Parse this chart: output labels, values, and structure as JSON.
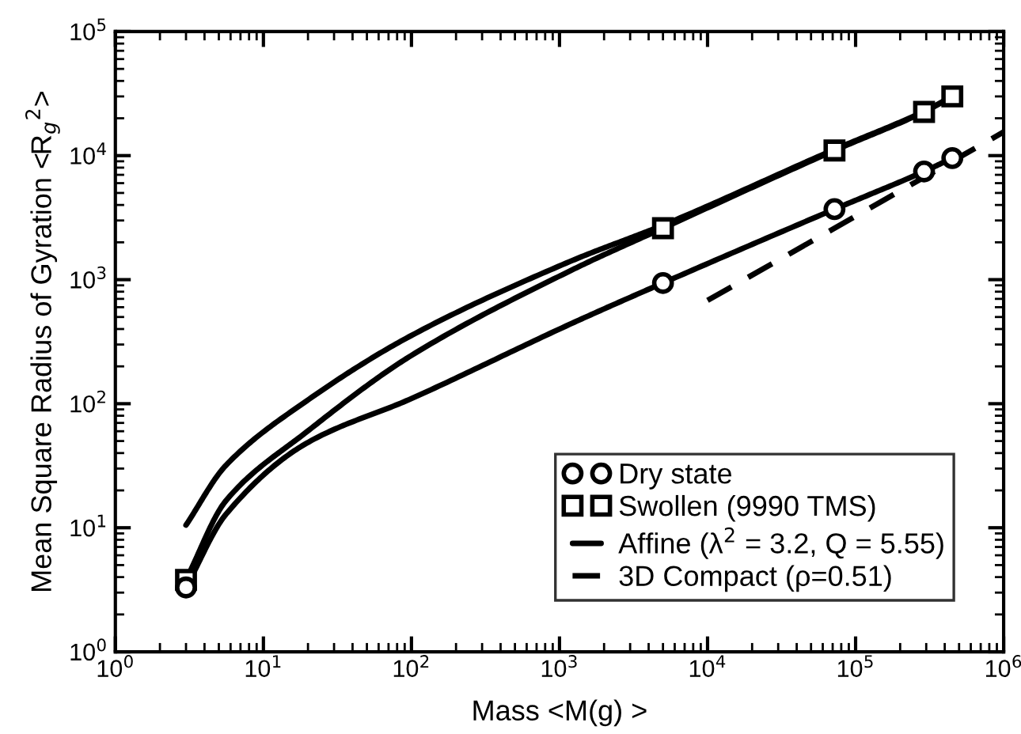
{
  "chart_data": {
    "type": "line",
    "xlabel": "Mass <M(g) >",
    "ylabel": "Mean Square Radius of Gyration <R$_{g}$$^{2}$>",
    "log": "xy",
    "xlim": [
      1,
      1000000
    ],
    "ylim": [
      1,
      100000
    ],
    "xticks": [
      {
        "value": 1,
        "label": "10$^{0}$"
      },
      {
        "value": 10,
        "label": "10$^{1}$"
      },
      {
        "value": 100,
        "label": "10$^{2}$"
      },
      {
        "value": 1000,
        "label": "10$^{3}$"
      },
      {
        "value": 10000,
        "label": "10$^{4}$"
      },
      {
        "value": 100000,
        "label": "10$^{5}$"
      },
      {
        "value": 1000000,
        "label": "10$^{6}$"
      }
    ],
    "yticks": [
      {
        "value": 1,
        "label": "10$^{0}$"
      },
      {
        "value": 10,
        "label": "10$^{1}$"
      },
      {
        "value": 100,
        "label": "10$^{2}$"
      },
      {
        "value": 1000,
        "label": "10$^{3}$"
      },
      {
        "value": 10000,
        "label": "10$^{4}$"
      },
      {
        "value": 100000,
        "label": "10$^{5}$"
      }
    ],
    "grid": false,
    "legend": "bottom right",
    "series": [
      {
        "color": "#000000",
        "marker": "none",
        "line_style": "solid",
        "x": [
          3,
          5.6,
          19.5,
          100,
          1175,
          5000,
          72000,
          290000,
          450000
        ],
        "values": [
          3.3,
          12.9,
          47.9,
          110,
          437,
          940,
          3700,
          7450,
          9550
        ]
      },
      {
        "type": "scatter",
        "name": "Dry state",
        "color": "#000000",
        "marker": "circle",
        "x": [
          3,
          5000,
          72000,
          290000,
          450000
        ],
        "values": [
          3.3,
          940,
          3700,
          7450,
          9550
        ]
      },
      {
        "color": "#000000",
        "marker": "none",
        "line_style": "solid",
        "x": [
          3,
          5.6,
          19.5,
          100,
          1175,
          5000,
          72000,
          290000,
          450000
        ],
        "values": [
          3.8,
          16.6,
          59,
          245,
          1175,
          2600,
          11000,
          22500,
          30000
        ]
      },
      {
        "type": "scatter",
        "name": "Swollen (9990 TMS)",
        "color": "#000000",
        "marker": "square",
        "x": [
          3,
          5000,
          72000,
          290000,
          450000
        ],
        "values": [
          3.8,
          2600,
          11000,
          22500,
          30000
        ]
      },
      {
        "name": "Affine (λ$^{2}$ = 3.2, Q = 5.55)",
        "color": "#000000",
        "marker": "none",
        "line_style": "solid",
        "x": [
          3,
          5.6,
          19.5,
          100,
          1175,
          5000,
          72000,
          290000,
          450000
        ],
        "values": [
          10.5,
          32,
          105,
          355,
          1400,
          2750,
          11200,
          22700,
          30000
        ]
      },
      {
        "name": "3D Compact (ρ=0.51)",
        "color": "#000000",
        "marker": "none",
        "line_style": "dashed",
        "x": [
          10000,
          1000000
        ],
        "values": [
          680,
          15500
        ]
      }
    ]
  }
}
